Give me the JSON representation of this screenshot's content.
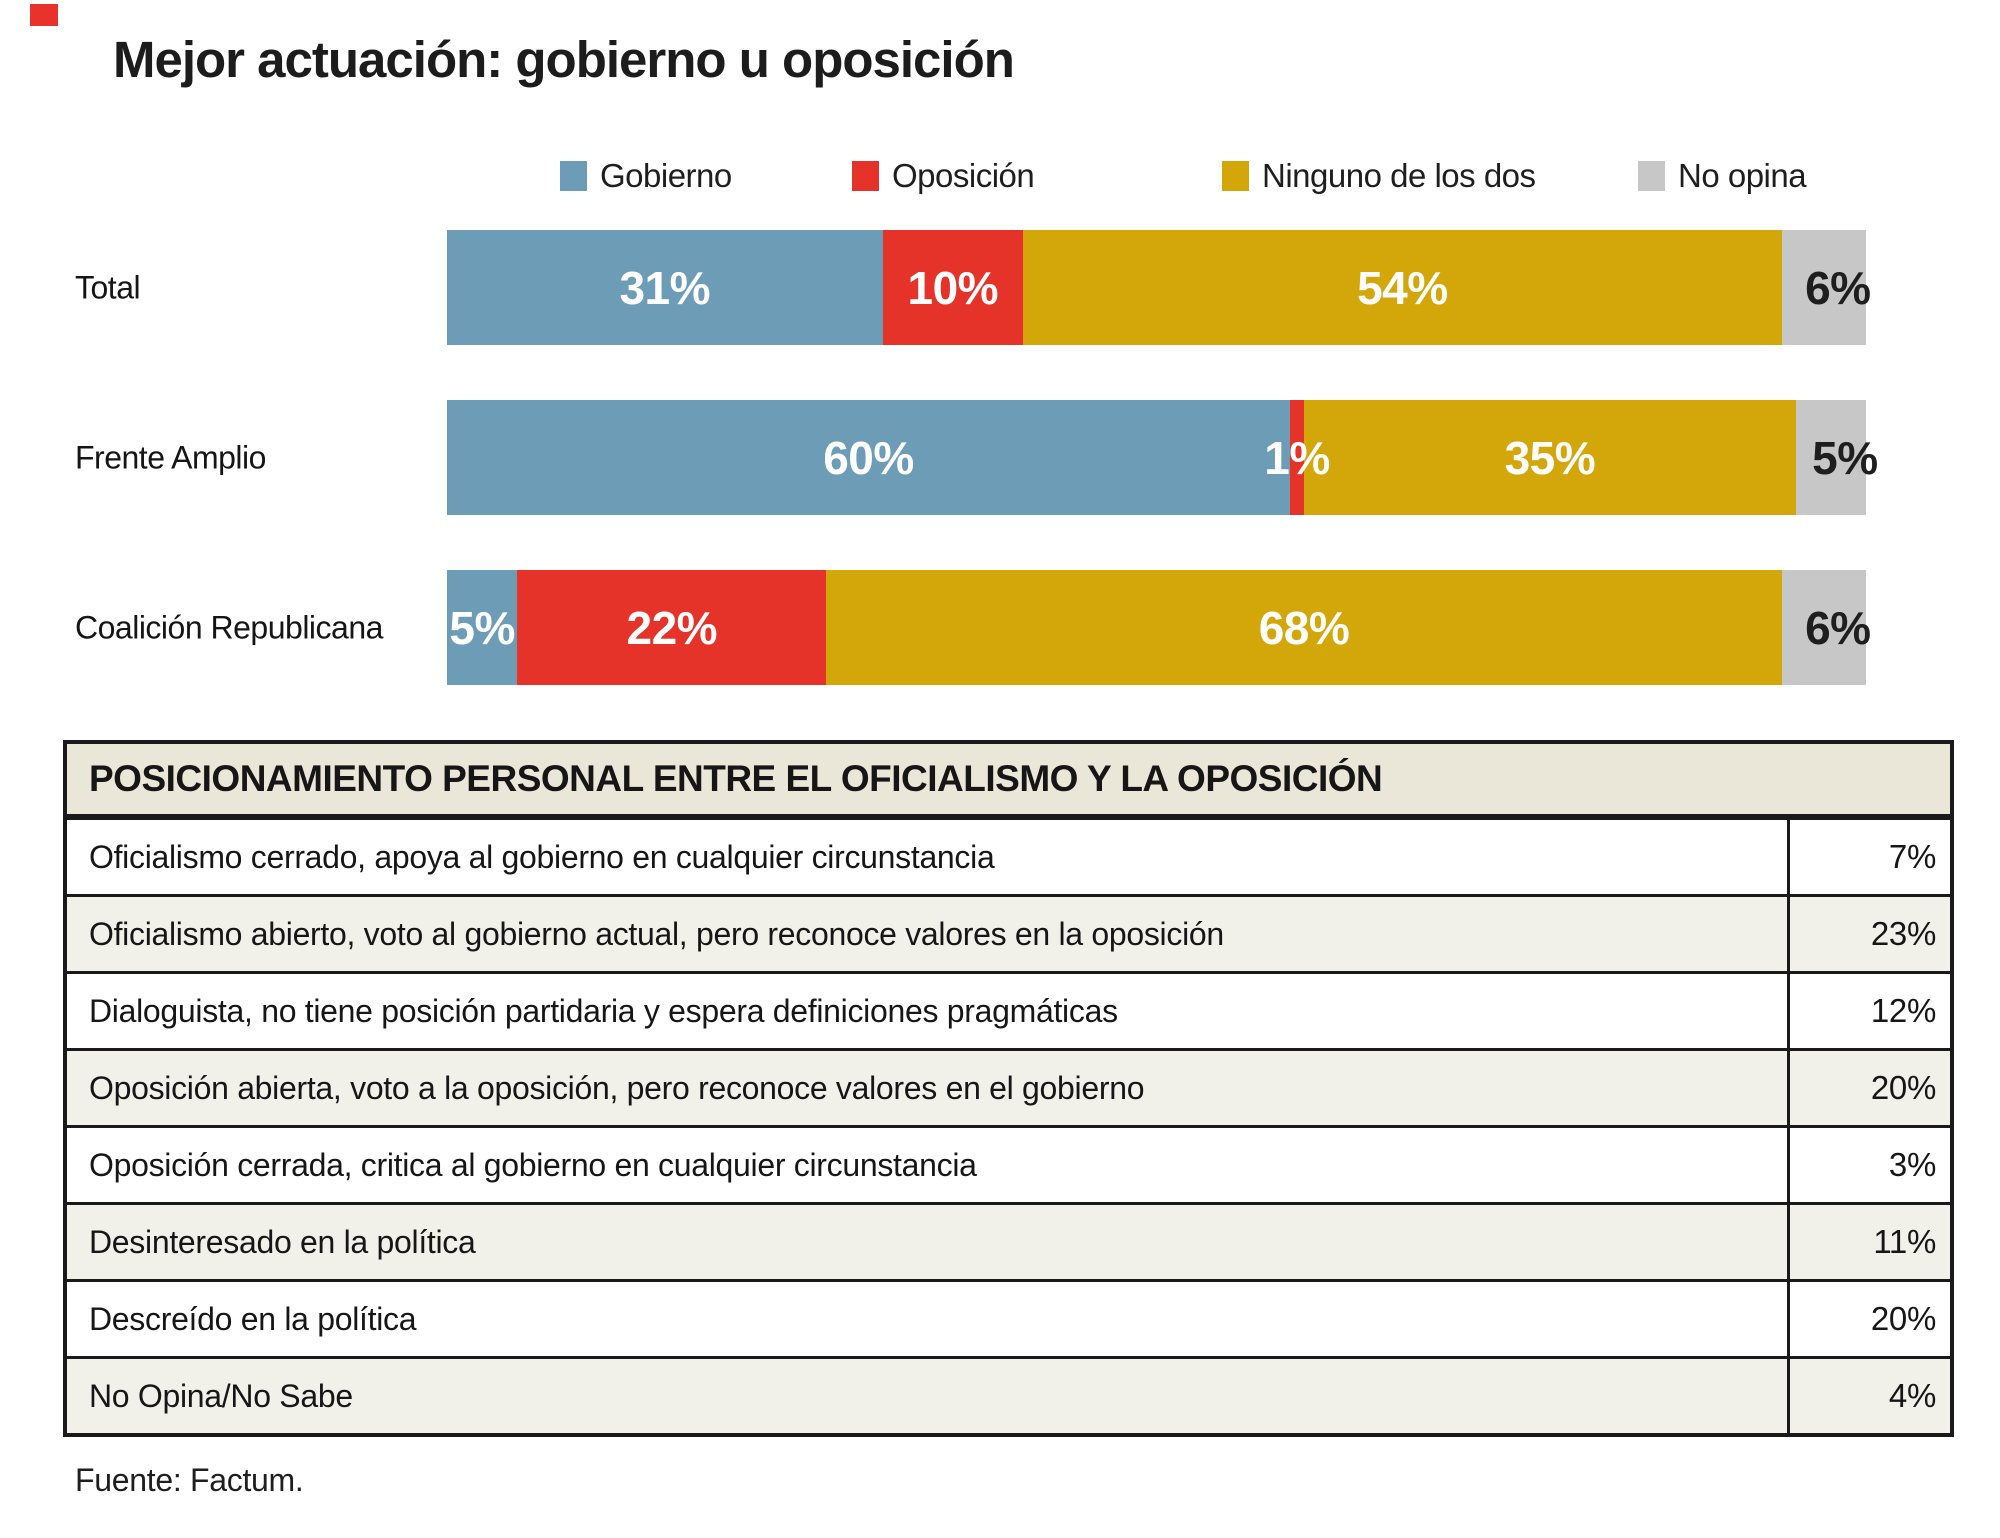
{
  "brand_mark_color": "#e8322b",
  "title": "Mejor actuación: gobierno u oposición",
  "chart_data": {
    "type": "bar",
    "orientation": "horizontal",
    "stacked": true,
    "title": "Mejor actuación: gobierno u oposición",
    "legend_position": "top",
    "value_suffix": "%",
    "categories": [
      "Total",
      "Frente Amplio",
      "Coalición Republicana"
    ],
    "series": [
      {
        "name": "Gobierno",
        "color": "#6d9cb6",
        "values": [
          31,
          60,
          5
        ]
      },
      {
        "name": "Oposición",
        "color": "#e6332a",
        "values": [
          10,
          1,
          22
        ]
      },
      {
        "name": "Ninguno de los dos",
        "color": "#d3a70a",
        "values": [
          54,
          35,
          68
        ]
      },
      {
        "name": "No opina",
        "color": "#c7c7c7",
        "values": [
          6,
          5,
          6
        ]
      }
    ]
  },
  "table": {
    "header": "POSICIONAMIENTO PERSONAL ENTRE EL OFICIALISMO Y LA OPOSICIÓN",
    "rows": [
      {
        "label": "Oficialismo cerrado, apoya al gobierno en cualquier circunstancia",
        "value": "7%"
      },
      {
        "label": "Oficialismo abierto, voto al gobierno actual, pero reconoce valores en la oposición",
        "value": "23%"
      },
      {
        "label": "Dialoguista, no tiene posición partidaria y espera definiciones pragmáticas",
        "value": "12%"
      },
      {
        "label": "Oposición abierta, voto a la oposición, pero reconoce valores en el gobierno",
        "value": "20%"
      },
      {
        "label": "Oposición cerrada, critica al gobierno en cualquier circunstancia",
        "value": "3%"
      },
      {
        "label": "Desinteresado en la política",
        "value": "11%"
      },
      {
        "label": "Descreído en la política",
        "value": "20%"
      },
      {
        "label": "No Opina/No Sabe",
        "value": "4%"
      }
    ]
  },
  "source": "Fuente: Factum."
}
